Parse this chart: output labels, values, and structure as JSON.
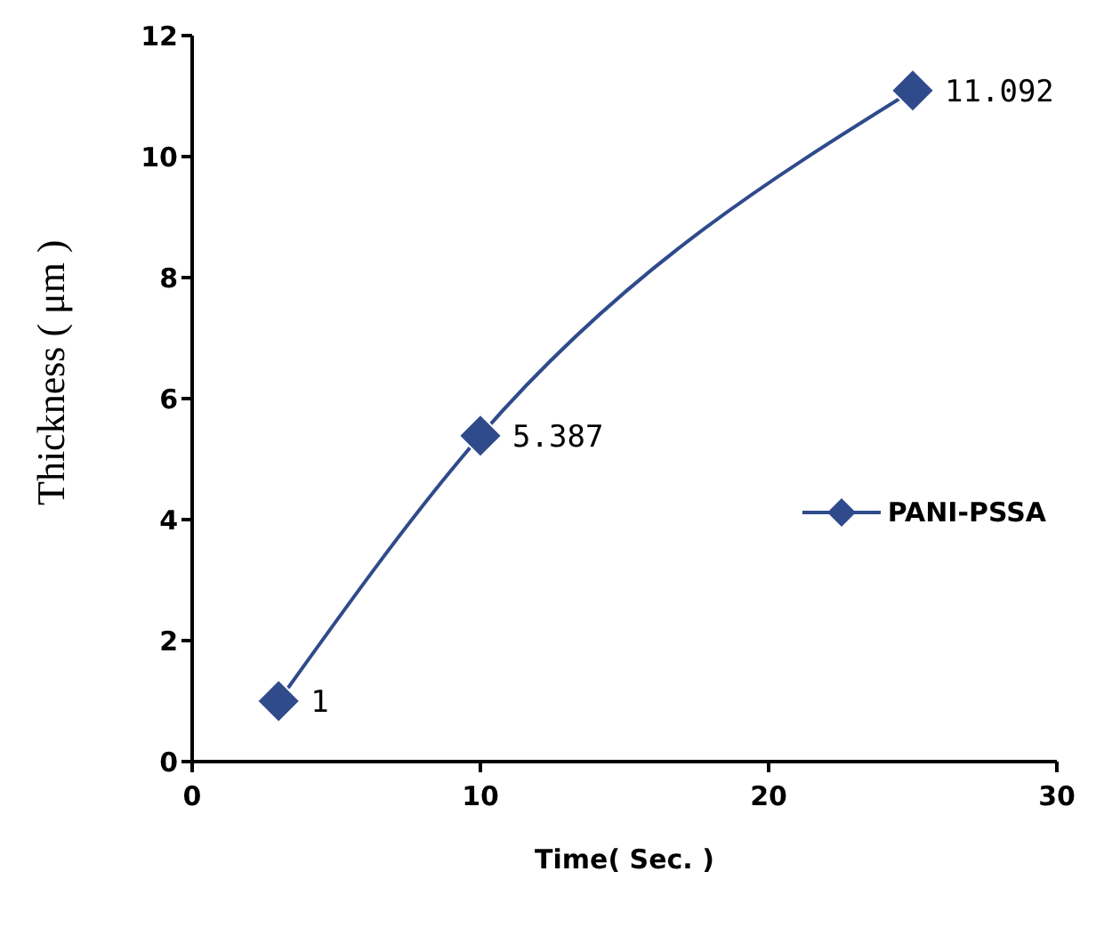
{
  "chart_data": {
    "type": "line",
    "xlabel": "Time( Sec. )",
    "ylabel": "Thickness ( μm )",
    "x": [
      3,
      10,
      25
    ],
    "series": [
      {
        "name": "PANI-PSSA",
        "color": "#2f4b8c",
        "values": [
          1,
          5.387,
          11.092
        ]
      }
    ],
    "xlim": [
      0,
      30
    ],
    "xticks": [
      0,
      10,
      20,
      30
    ],
    "ylim": [
      0,
      12
    ],
    "yticks": [
      0,
      2,
      4,
      6,
      8,
      10,
      12
    ],
    "grid": false,
    "legend": "right",
    "marker": "diamond",
    "line_style": "solid",
    "data_labels": true
  }
}
